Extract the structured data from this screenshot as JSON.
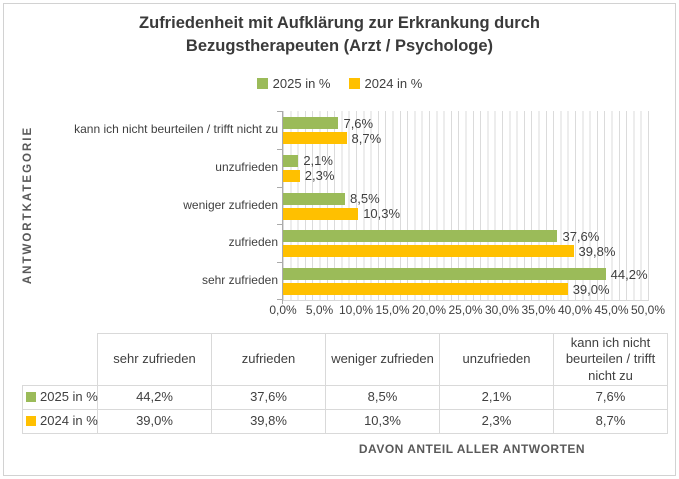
{
  "chart_data": {
    "type": "bar",
    "orientation": "horizontal",
    "title": "Zufriedenheit mit Aufklärung zur Erkrankung durch Bezugstherapeuten (Arzt / Psychologe)",
    "y_axis_title": "ANTWORTKATEGORIE",
    "footnote": "DAVON ANTEIL ALLER ANTWORTEN",
    "legend_position": "top",
    "grid": "minor vertical gridlines every 1%",
    "categories_top_to_bottom": [
      "kann ich nicht beurteilen / trifft nicht zu",
      "unzufrieden",
      "weniger zufrieden",
      "zufrieden",
      "sehr zufrieden"
    ],
    "series": [
      {
        "name": "2025 in %",
        "color": "#9BBB59",
        "values": [
          7.6,
          2.1,
          8.5,
          37.6,
          44.2
        ],
        "value_labels": [
          "7,6%",
          "2,1%",
          "8,5%",
          "37,6%",
          "44,2%"
        ]
      },
      {
        "name": "2024 in %",
        "color": "#FFC000",
        "values": [
          8.7,
          2.3,
          10.3,
          39.8,
          39.0
        ],
        "value_labels": [
          "8,7%",
          "2,3%",
          "10,3%",
          "39,8%",
          "39,0%"
        ]
      }
    ],
    "value_axis": {
      "min": 0,
      "max": 50,
      "major_unit": 5,
      "tick_labels": [
        "0,0%",
        "5,0%",
        "10,0%",
        "15,0%",
        "20,0%",
        "25,0%",
        "30,0%",
        "35,0%",
        "40,0%",
        "45,0%",
        "50,0%"
      ]
    }
  },
  "table": {
    "corner": "",
    "columns": [
      "sehr zufrieden",
      "zufrieden",
      "weniger zufrieden",
      "unzufrieden",
      "kann ich nicht beurteilen / trifft nicht zu"
    ],
    "rows": [
      {
        "label": "2025 in %",
        "swatch_color": "#9BBB59",
        "values": [
          "44,2%",
          "37,6%",
          "8,5%",
          "2,1%",
          "7,6%"
        ]
      },
      {
        "label": "2024 in %",
        "swatch_color": "#FFC000",
        "values": [
          "39,0%",
          "39,8%",
          "10,3%",
          "2,3%",
          "8,7%"
        ]
      }
    ]
  }
}
